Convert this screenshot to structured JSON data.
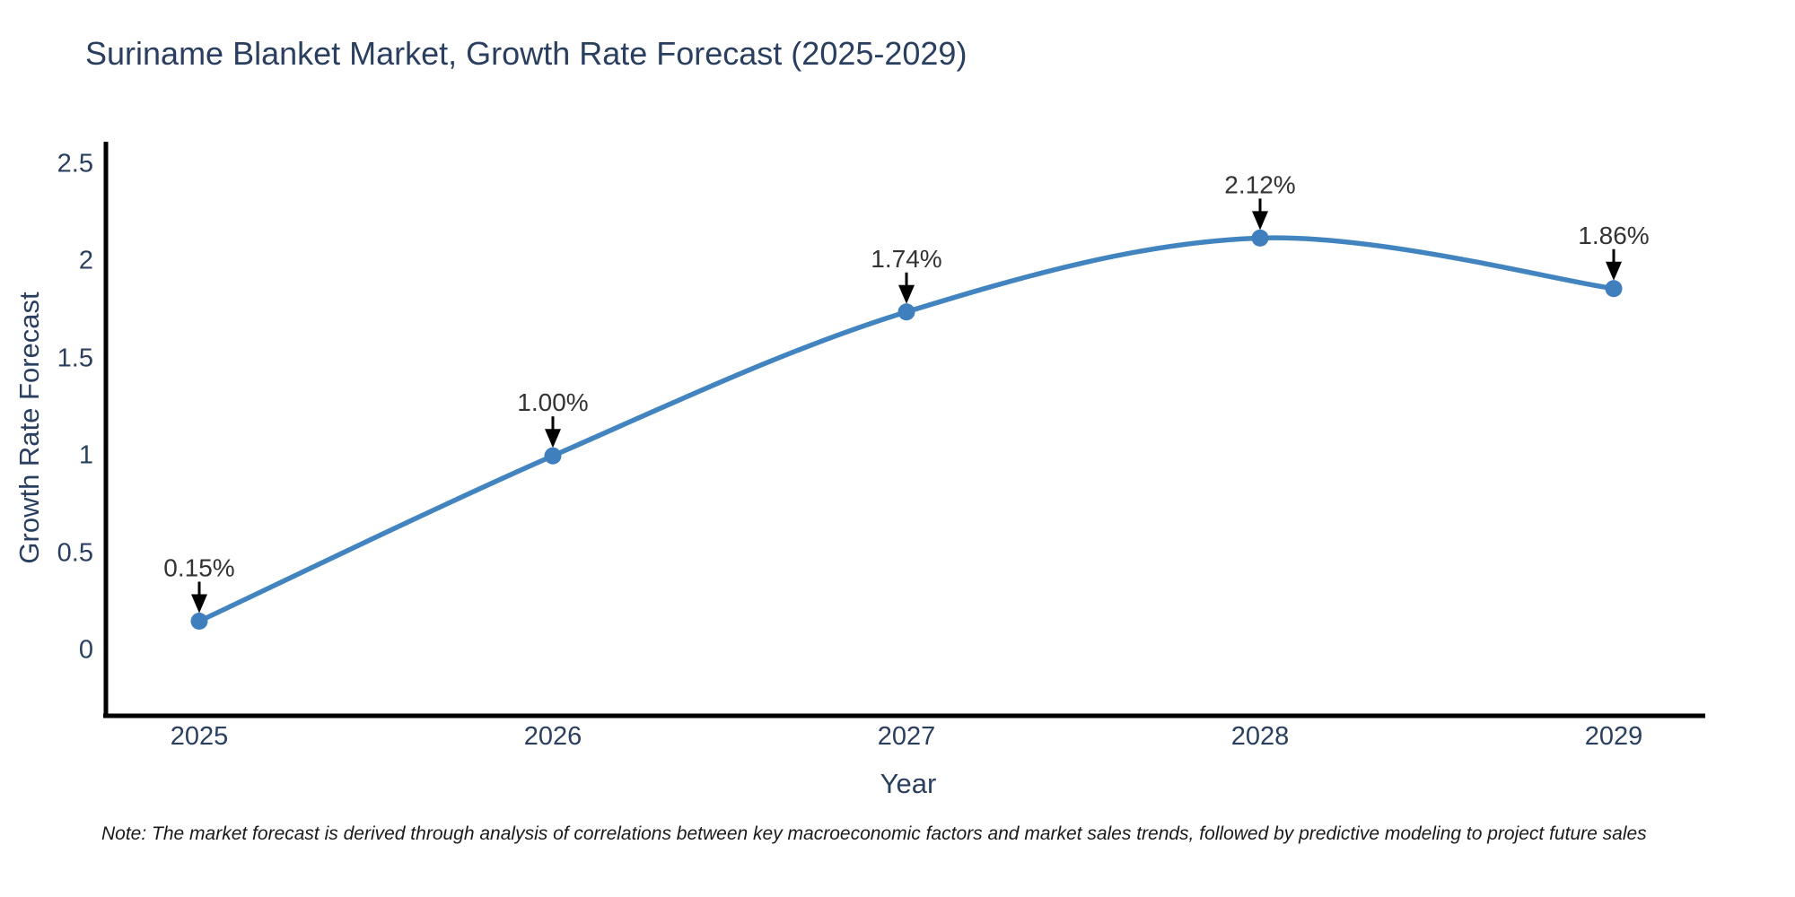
{
  "title": {
    "text": "Suriname Blanket Market, Growth Rate Forecast (2025-2029)"
  },
  "chart_data": {
    "type": "line",
    "title": "Suriname Blanket Market, Growth Rate Forecast (2025-2029)",
    "x": [
      "2025",
      "2026",
      "2027",
      "2028",
      "2029"
    ],
    "y": [
      0.15,
      1.0,
      1.74,
      2.12,
      1.86
    ],
    "point_labels": [
      "0.15%",
      "1.00%",
      "1.74%",
      "2.12%",
      "1.86%"
    ],
    "xlabel": "Year",
    "ylabel": "Growth Rate Forecast",
    "y_ticks": [
      0,
      0.5,
      1,
      1.5,
      2,
      2.5
    ],
    "y_tick_labels": [
      "0",
      "0.5",
      "1",
      "1.5",
      "2",
      "2.5"
    ],
    "ylim": [
      -0.34,
      2.61
    ],
    "line_shape": "spline",
    "grid": false,
    "legend": false,
    "annotations_have_arrows": true,
    "colors": {
      "line": "#4184bf",
      "marker": "#3f7fbe",
      "annotation_text": "#333333",
      "arrow": "#000000",
      "axis_line": "#000000",
      "text": "#2a3f5f"
    }
  },
  "note": {
    "text": "Note: The market forecast is derived through analysis of correlations between key macroeconomic factors and market sales trends, followed by predictive modeling to project future sales"
  }
}
